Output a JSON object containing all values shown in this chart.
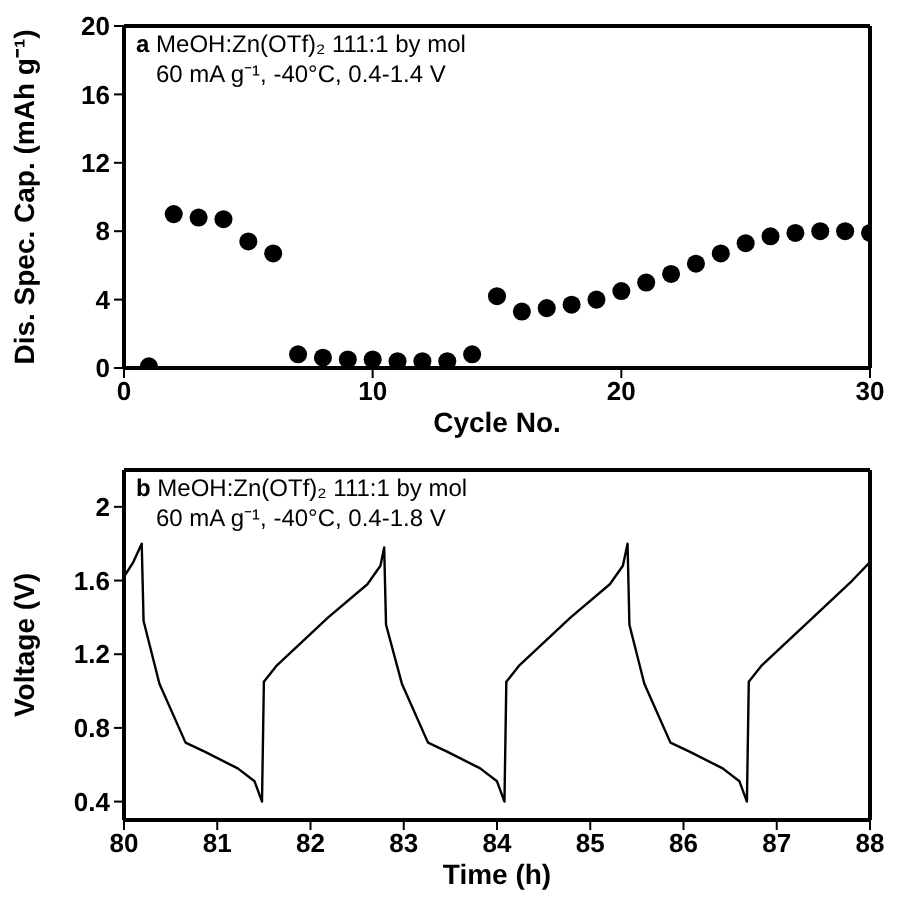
{
  "chart_data": [
    {
      "type": "scatter",
      "xlabel": "Cycle No.",
      "ylabel": "Dis. Spec. Cap. (mAh g⁻¹)",
      "annotations": [
        "a MeOH:Zn(OTf)₂ 111:1 by mol",
        "60 mA g⁻¹, -40°C, 0.4-1.4 V"
      ],
      "marker": "circle",
      "xlim": [
        0,
        30
      ],
      "xticks": [
        0,
        10,
        20,
        30
      ],
      "ylim": [
        0,
        20
      ],
      "yticks": [
        0,
        4,
        8,
        12,
        16,
        20
      ],
      "x": [
        1,
        2,
        3,
        4,
        5,
        6,
        7,
        8,
        9,
        10,
        11,
        12,
        13,
        14,
        15,
        16,
        17,
        18,
        19,
        20,
        21,
        22,
        23,
        24,
        25,
        26,
        27,
        28,
        29,
        30
      ],
      "series": [
        {
          "color": "#000000",
          "values": [
            0.1,
            9.0,
            8.8,
            8.7,
            7.4,
            6.7,
            0.8,
            0.6,
            0.5,
            0.5,
            0.4,
            0.4,
            0.4,
            0.8,
            4.2,
            3.3,
            3.5,
            3.7,
            4.0,
            4.5,
            5.0,
            5.5,
            6.1,
            6.7,
            7.3,
            7.7,
            7.9,
            8.0,
            8.0,
            7.9
          ]
        }
      ]
    },
    {
      "type": "line",
      "xlabel": "Time (h)",
      "ylabel": "Voltage (V)",
      "annotations": [
        "b MeOH:Zn(OTf)₂ 111:1 by mol",
        "60 mA g⁻¹, -40°C, 0.4-1.8 V"
      ],
      "marker": "none",
      "line_style": "solid",
      "xlim": [
        80,
        88
      ],
      "xticks": [
        80,
        81,
        82,
        83,
        84,
        85,
        86,
        87,
        88
      ],
      "ylim": [
        0.3,
        2.2
      ],
      "yticks": [
        0.4,
        0.8,
        1.2,
        1.6,
        2
      ],
      "x": [
        80.0,
        80.1,
        80.19,
        80.21,
        80.38,
        80.66,
        80.87,
        81.22,
        81.4,
        81.48,
        81.5,
        81.64,
        82.19,
        82.61,
        82.75,
        82.79,
        82.81,
        82.98,
        83.26,
        83.47,
        83.82,
        84.0,
        84.08,
        84.1,
        84.24,
        84.79,
        85.21,
        85.35,
        85.4,
        85.42,
        85.58,
        85.86,
        86.07,
        86.42,
        86.6,
        86.68,
        86.7,
        86.84,
        87.39,
        87.81,
        88.0
      ],
      "series": [
        {
          "color": "#000000",
          "values": [
            1.62,
            1.7,
            1.8,
            1.38,
            1.04,
            0.72,
            0.67,
            0.58,
            0.51,
            0.4,
            1.05,
            1.14,
            1.4,
            1.58,
            1.68,
            1.78,
            1.36,
            1.04,
            0.72,
            0.67,
            0.58,
            0.51,
            0.4,
            1.05,
            1.14,
            1.4,
            1.58,
            1.68,
            1.8,
            1.36,
            1.04,
            0.72,
            0.67,
            0.58,
            0.51,
            0.4,
            1.05,
            1.14,
            1.4,
            1.6,
            1.7
          ]
        }
      ]
    }
  ]
}
